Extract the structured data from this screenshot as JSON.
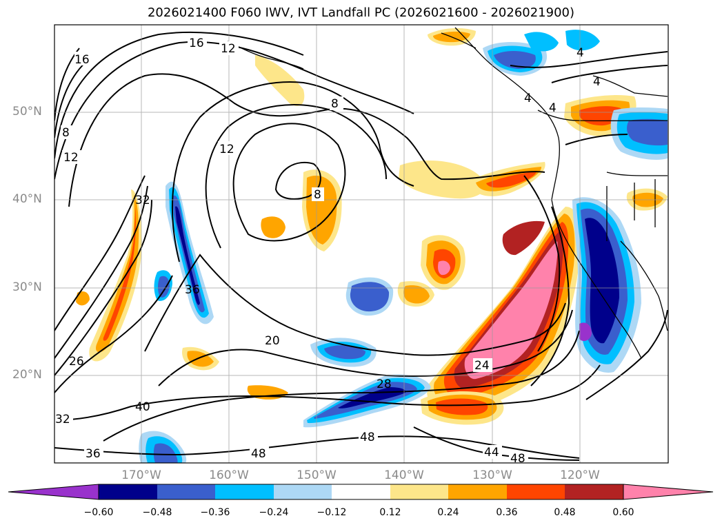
{
  "title": "2026021400 F060 IWV, IVT Landfall PC (2026021600 - 2026021900)",
  "lat_labels": [
    "50°N",
    "40°N",
    "30°N",
    "20°N"
  ],
  "lon_labels": [
    "170°W",
    "160°W",
    "150°W",
    "140°W",
    "130°W",
    "120°W"
  ],
  "colorbar": {
    "ticks": [
      "−0.60",
      "−0.48",
      "−0.36",
      "−0.24",
      "−0.12",
      "0.12",
      "0.24",
      "0.36",
      "0.48",
      "0.60"
    ],
    "colors": [
      "#9932cc",
      "#00008b",
      "#3a5fcd",
      "#00bfff",
      "#add8f5",
      "#ffffff",
      "#fde68a",
      "#ffa500",
      "#ff4500",
      "#b22222",
      "#ff82ab"
    ]
  },
  "contour_labels": [
    "16",
    "12",
    "16",
    "8",
    "12",
    "8",
    "12",
    "8",
    "4",
    "4",
    "4",
    "4",
    "32",
    "36",
    "20",
    "24",
    "28",
    "48",
    "40",
    "32",
    "36",
    "48",
    "44",
    "48",
    "26"
  ]
}
